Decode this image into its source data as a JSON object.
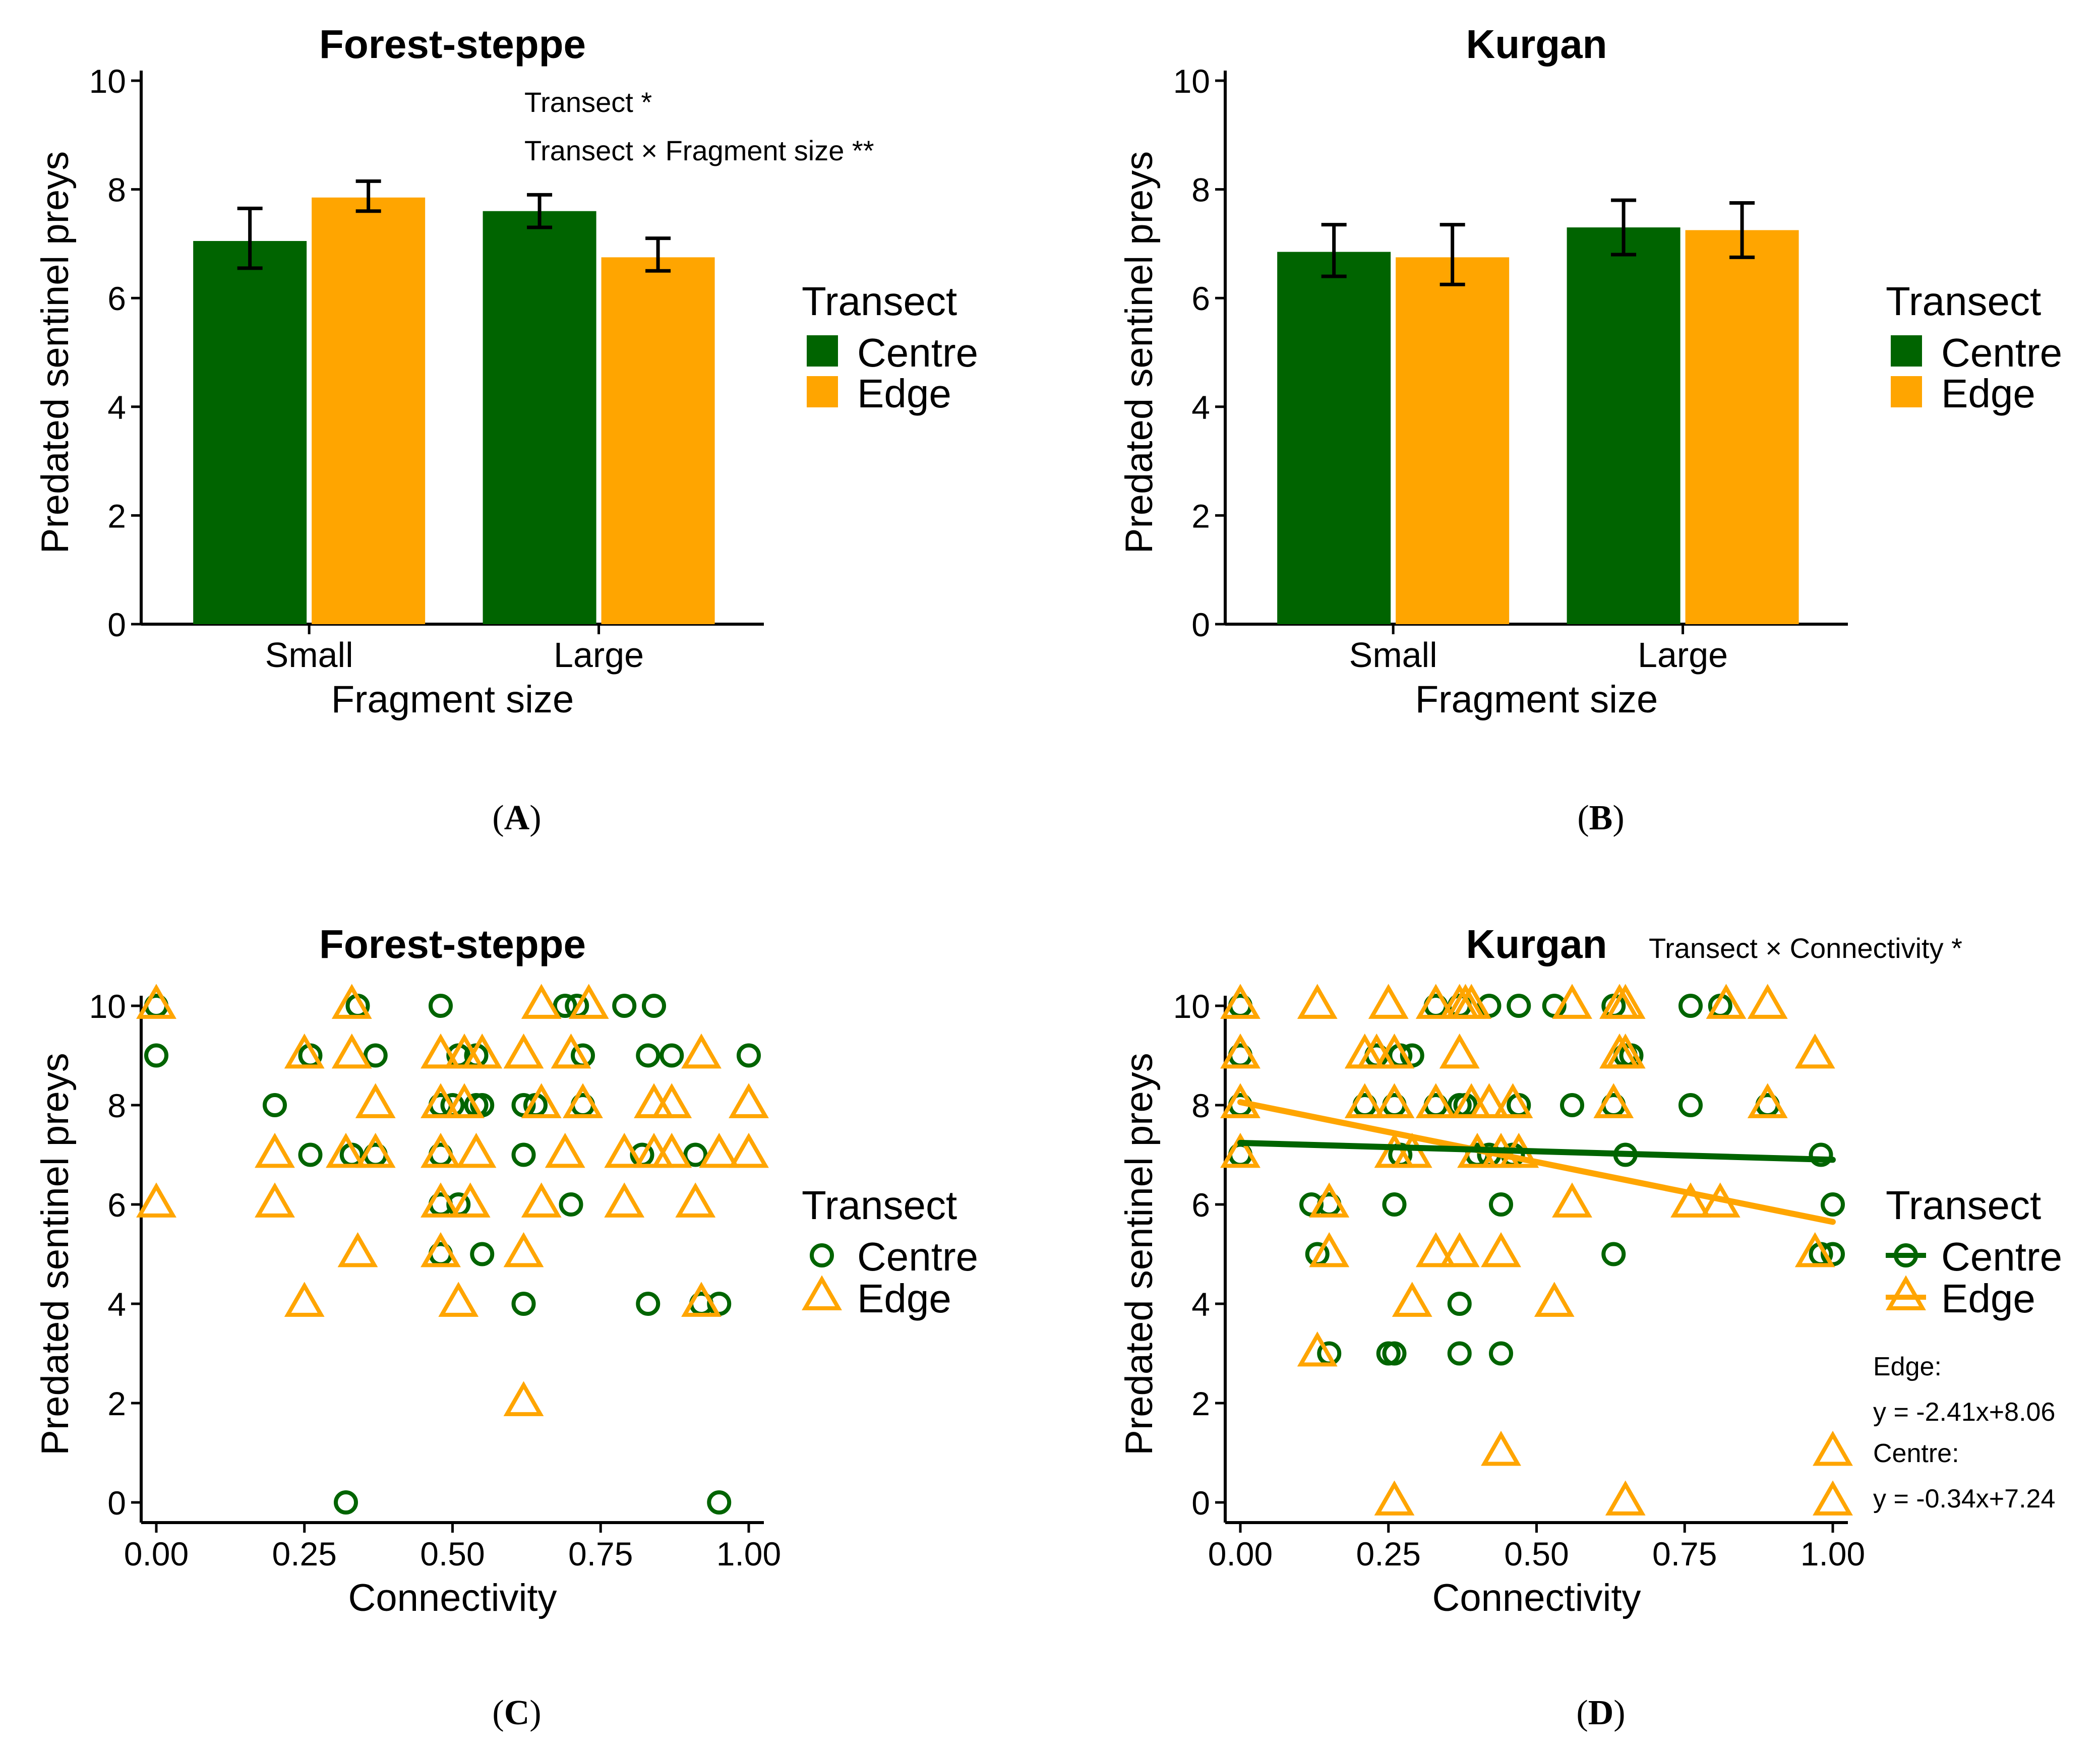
{
  "colors": {
    "centre": "#006400",
    "edge": "#FFA500",
    "axis": "#000000"
  },
  "chart_data": [
    {
      "panel_label": "A",
      "type": "bar",
      "title": "Forest-steppe",
      "xlabel": "Fragment size",
      "ylabel": "Predated sentinel preys",
      "ylim": [
        0,
        10
      ],
      "yticks": [
        0,
        2,
        4,
        6,
        8,
        10
      ],
      "categories": [
        "Small",
        "Large"
      ],
      "series": [
        {
          "name": "Centre",
          "values": [
            7.05,
            7.6
          ],
          "err_low": [
            6.55,
            7.3
          ],
          "err_high": [
            7.65,
            7.9
          ]
        },
        {
          "name": "Edge",
          "values": [
            7.85,
            6.75
          ],
          "err_low": [
            7.6,
            6.5
          ],
          "err_high": [
            8.15,
            7.1
          ]
        }
      ],
      "legend": {
        "title": "Transect",
        "items": [
          "Centre",
          "Edge"
        ],
        "placement": "right"
      },
      "annotations": [
        "Transect *",
        "Transect × Fragment size  **"
      ]
    },
    {
      "panel_label": "B",
      "type": "bar",
      "title": "Kurgan",
      "xlabel": "Fragment size",
      "ylabel": "Predated sentinel preys",
      "ylim": [
        0,
        10
      ],
      "yticks": [
        0,
        2,
        4,
        6,
        8,
        10
      ],
      "categories": [
        "Small",
        "Large"
      ],
      "series": [
        {
          "name": "Centre",
          "values": [
            6.85,
            7.3
          ],
          "err_low": [
            6.4,
            6.8
          ],
          "err_high": [
            7.35,
            7.8
          ]
        },
        {
          "name": "Edge",
          "values": [
            6.75,
            7.25
          ],
          "err_low": [
            6.25,
            6.75
          ],
          "err_high": [
            7.35,
            7.75
          ]
        }
      ],
      "legend": {
        "title": "Transect",
        "items": [
          "Centre",
          "Edge"
        ],
        "placement": "right"
      },
      "annotations": []
    },
    {
      "panel_label": "C",
      "type": "scatter",
      "title": "Forest-steppe",
      "xlabel": "Connectivity",
      "ylabel": "Predated sentinel preys",
      "xlim": [
        0,
        1
      ],
      "ylim": [
        0,
        10
      ],
      "xticks": [
        "0.00",
        "0.25",
        "0.50",
        "0.75",
        "1.00"
      ],
      "yticks": [
        0,
        2,
        4,
        6,
        8,
        10
      ],
      "series": [
        {
          "name": "Centre",
          "marker": "circle",
          "points": [
            [
              0.0,
              10
            ],
            [
              0.34,
              10
            ],
            [
              0.48,
              10
            ],
            [
              0.69,
              10
            ],
            [
              0.71,
              10
            ],
            [
              0.79,
              10
            ],
            [
              0.84,
              10
            ],
            [
              0.0,
              9
            ],
            [
              0.26,
              9
            ],
            [
              0.37,
              9
            ],
            [
              0.51,
              9
            ],
            [
              0.54,
              9
            ],
            [
              0.72,
              9
            ],
            [
              0.83,
              9
            ],
            [
              0.87,
              9
            ],
            [
              1.0,
              9
            ],
            [
              0.2,
              8
            ],
            [
              0.48,
              8
            ],
            [
              0.5,
              8
            ],
            [
              0.54,
              8
            ],
            [
              0.55,
              8
            ],
            [
              0.62,
              8
            ],
            [
              0.64,
              8
            ],
            [
              0.72,
              8
            ],
            [
              0.26,
              7
            ],
            [
              0.33,
              7
            ],
            [
              0.37,
              7
            ],
            [
              0.48,
              7
            ],
            [
              0.62,
              7
            ],
            [
              0.82,
              7
            ],
            [
              0.91,
              7
            ],
            [
              0.48,
              6
            ],
            [
              0.51,
              6
            ],
            [
              0.7,
              6
            ],
            [
              0.48,
              5
            ],
            [
              0.55,
              5
            ],
            [
              0.62,
              4
            ],
            [
              0.83,
              4
            ],
            [
              0.92,
              4
            ],
            [
              0.95,
              4
            ],
            [
              0.32,
              0
            ],
            [
              0.95,
              0
            ]
          ]
        },
        {
          "name": "Edge",
          "marker": "triangle",
          "points": [
            [
              0.0,
              10
            ],
            [
              0.33,
              10
            ],
            [
              0.65,
              10
            ],
            [
              0.73,
              10
            ],
            [
              0.25,
              9
            ],
            [
              0.33,
              9
            ],
            [
              0.48,
              9
            ],
            [
              0.52,
              9
            ],
            [
              0.55,
              9
            ],
            [
              0.62,
              9
            ],
            [
              0.7,
              9
            ],
            [
              0.92,
              9
            ],
            [
              0.37,
              8
            ],
            [
              0.48,
              8
            ],
            [
              0.52,
              8
            ],
            [
              0.65,
              8
            ],
            [
              0.72,
              8
            ],
            [
              0.84,
              8
            ],
            [
              0.87,
              8
            ],
            [
              1.0,
              8
            ],
            [
              0.2,
              7
            ],
            [
              0.32,
              7
            ],
            [
              0.37,
              7
            ],
            [
              0.48,
              7
            ],
            [
              0.54,
              7
            ],
            [
              0.69,
              7
            ],
            [
              0.79,
              7
            ],
            [
              0.84,
              7
            ],
            [
              0.87,
              7
            ],
            [
              0.95,
              7
            ],
            [
              1.0,
              7
            ],
            [
              0.0,
              6
            ],
            [
              0.2,
              6
            ],
            [
              0.48,
              6
            ],
            [
              0.53,
              6
            ],
            [
              0.65,
              6
            ],
            [
              0.79,
              6
            ],
            [
              0.91,
              6
            ],
            [
              0.34,
              5
            ],
            [
              0.48,
              5
            ],
            [
              0.62,
              5
            ],
            [
              0.25,
              4
            ],
            [
              0.51,
              4
            ],
            [
              0.92,
              4
            ],
            [
              0.62,
              2
            ]
          ]
        }
      ],
      "legend": {
        "title": "Transect",
        "items": [
          "Centre",
          "Edge"
        ],
        "placement": "right"
      },
      "annotations": []
    },
    {
      "panel_label": "D",
      "type": "scatter",
      "title": "Kurgan",
      "xlabel": "Connectivity",
      "ylabel": "Predated sentinel preys",
      "xlim": [
        0,
        1
      ],
      "ylim": [
        0,
        10
      ],
      "xticks": [
        "0.00",
        "0.25",
        "0.50",
        "0.75",
        "1.00"
      ],
      "yticks": [
        0,
        2,
        4,
        6,
        8,
        10
      ],
      "series": [
        {
          "name": "Centre",
          "marker": "circle",
          "points": [
            [
              0.0,
              10
            ],
            [
              0.33,
              10
            ],
            [
              0.37,
              10
            ],
            [
              0.42,
              10
            ],
            [
              0.47,
              10
            ],
            [
              0.53,
              10
            ],
            [
              0.63,
              10
            ],
            [
              0.76,
              10
            ],
            [
              0.81,
              10
            ],
            [
              0.0,
              9
            ],
            [
              0.23,
              9
            ],
            [
              0.27,
              9
            ],
            [
              0.29,
              9
            ],
            [
              0.65,
              9
            ],
            [
              0.66,
              9
            ],
            [
              0.0,
              8
            ],
            [
              0.21,
              8
            ],
            [
              0.26,
              8
            ],
            [
              0.33,
              8
            ],
            [
              0.37,
              8
            ],
            [
              0.38,
              8
            ],
            [
              0.47,
              8
            ],
            [
              0.56,
              8
            ],
            [
              0.63,
              8
            ],
            [
              0.76,
              8
            ],
            [
              0.89,
              8
            ],
            [
              0.0,
              7
            ],
            [
              0.27,
              7
            ],
            [
              0.4,
              7
            ],
            [
              0.42,
              7
            ],
            [
              0.46,
              7
            ],
            [
              0.65,
              7
            ],
            [
              0.98,
              7
            ],
            [
              0.12,
              6
            ],
            [
              0.15,
              6
            ],
            [
              0.26,
              6
            ],
            [
              0.44,
              6
            ],
            [
              1.0,
              6
            ],
            [
              0.13,
              5
            ],
            [
              0.63,
              5
            ],
            [
              0.98,
              5
            ],
            [
              1.0,
              5
            ],
            [
              0.37,
              4
            ],
            [
              0.15,
              3
            ],
            [
              0.25,
              3
            ],
            [
              0.26,
              3
            ],
            [
              0.37,
              3
            ],
            [
              0.44,
              3
            ]
          ]
        },
        {
          "name": "Edge",
          "marker": "triangle",
          "points": [
            [
              0.0,
              10
            ],
            [
              0.13,
              10
            ],
            [
              0.25,
              10
            ],
            [
              0.33,
              10
            ],
            [
              0.37,
              10
            ],
            [
              0.38,
              10
            ],
            [
              0.39,
              10
            ],
            [
              0.56,
              10
            ],
            [
              0.64,
              10
            ],
            [
              0.65,
              10
            ],
            [
              0.82,
              10
            ],
            [
              0.89,
              10
            ],
            [
              0.0,
              9
            ],
            [
              0.21,
              9
            ],
            [
              0.23,
              9
            ],
            [
              0.26,
              9
            ],
            [
              0.37,
              9
            ],
            [
              0.64,
              9
            ],
            [
              0.65,
              9
            ],
            [
              0.97,
              9
            ],
            [
              0.0,
              8
            ],
            [
              0.21,
              8
            ],
            [
              0.26,
              8
            ],
            [
              0.33,
              8
            ],
            [
              0.39,
              8
            ],
            [
              0.42,
              8
            ],
            [
              0.46,
              8
            ],
            [
              0.63,
              8
            ],
            [
              0.89,
              8
            ],
            [
              0.0,
              7
            ],
            [
              0.26,
              7
            ],
            [
              0.29,
              7
            ],
            [
              0.4,
              7
            ],
            [
              0.44,
              7
            ],
            [
              0.47,
              7
            ],
            [
              0.15,
              6
            ],
            [
              0.56,
              6
            ],
            [
              0.76,
              6
            ],
            [
              0.81,
              6
            ],
            [
              0.15,
              5
            ],
            [
              0.33,
              5
            ],
            [
              0.37,
              5
            ],
            [
              0.44,
              5
            ],
            [
              0.97,
              5
            ],
            [
              0.29,
              4
            ],
            [
              0.53,
              4
            ],
            [
              0.13,
              3
            ],
            [
              0.44,
              1
            ],
            [
              1.0,
              1
            ],
            [
              0.26,
              0
            ],
            [
              0.65,
              0
            ],
            [
              1.0,
              0
            ]
          ]
        }
      ],
      "trendlines": [
        {
          "name": "Edge",
          "slope": -2.41,
          "intercept": 8.06,
          "x_range": [
            0,
            1
          ]
        },
        {
          "name": "Centre",
          "slope": -0.34,
          "intercept": 7.24,
          "x_range": [
            0,
            1
          ]
        }
      ],
      "legend": {
        "title": "Transect",
        "items": [
          "Centre",
          "Edge"
        ],
        "placement": "right"
      },
      "annotations": [
        "Transect × Connectivity *",
        "Edge:",
        "y = -2.41x+8.06",
        "Centre:",
        "y = -0.34x+7.24"
      ]
    }
  ]
}
